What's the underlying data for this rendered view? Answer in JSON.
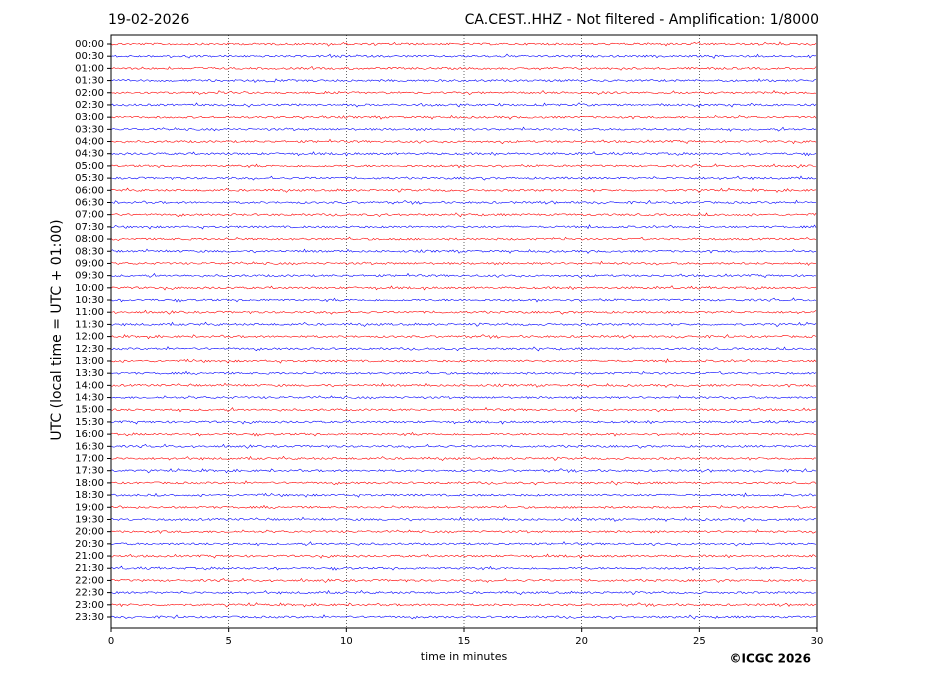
{
  "chart_data": {
    "type": "helicorder",
    "date": "19-02-2026",
    "title": "CA.CEST..HHZ - Not filtered - Amplification: 1/8000",
    "ylabel": "UTC (local time = UTC + 01:00)",
    "xlabel": "time in minutes",
    "copyright": "©ICGC 2026",
    "xlim": [
      0,
      30
    ],
    "xticks": [
      0,
      5,
      10,
      15,
      20,
      25,
      30
    ],
    "grid": true,
    "colors": [
      "#ff0000",
      "#0000ff"
    ],
    "categories": [
      "00:00",
      "00:30",
      "01:00",
      "01:30",
      "02:00",
      "02:30",
      "03:00",
      "03:30",
      "04:00",
      "04:30",
      "05:00",
      "05:30",
      "06:00",
      "06:30",
      "07:00",
      "07:30",
      "08:00",
      "08:30",
      "09:00",
      "09:30",
      "10:00",
      "10:30",
      "11:00",
      "11:30",
      "12:00",
      "12:30",
      "13:00",
      "13:30",
      "14:00",
      "14:30",
      "15:00",
      "15:30",
      "16:00",
      "16:30",
      "17:00",
      "17:30",
      "18:00",
      "18:30",
      "19:00",
      "19:30",
      "20:00",
      "20:30",
      "21:00",
      "21:30",
      "22:00",
      "22:30",
      "23:00",
      "23:30"
    ]
  }
}
